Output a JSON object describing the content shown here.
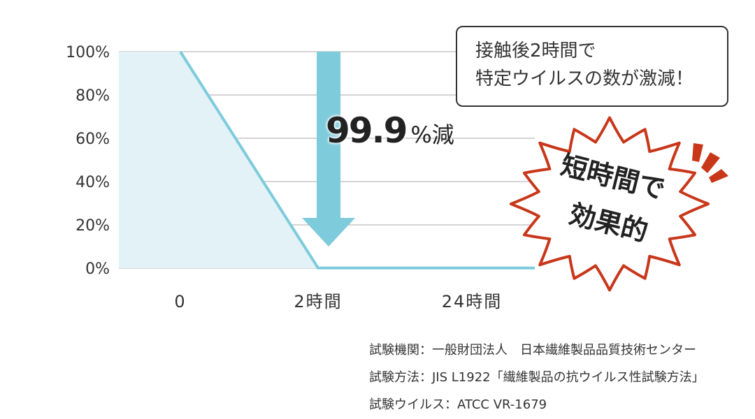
{
  "chart_data": {
    "type": "area",
    "categories": [
      "0",
      "2時間",
      "24時間"
    ],
    "series": [
      {
        "values": [
          100,
          0.1,
          0.1
        ]
      }
    ],
    "y_ticks": [
      "100%",
      "80%",
      "60%",
      "40%",
      "20%",
      "0%"
    ],
    "ylim": [
      0,
      100
    ],
    "grid": true,
    "annotation": {
      "value": "99.9",
      "unit": "%減"
    }
  },
  "callout": {
    "lines": [
      "接触後2時間で",
      "特定ウイルスの数が激減！"
    ]
  },
  "burst": {
    "lines": [
      "短時間で",
      "効果的"
    ]
  },
  "sources": [
    "試験機関：一般財団法人　日本繊維製品品質技術センター",
    "試験方法：JIS L1922「繊維製品の抗ウイルス性試験方法」",
    "試験ウイルス：ATCC VR-1679"
  ],
  "colors": {
    "line": "#7ecbdc",
    "fill": "#e2f2f6",
    "arrow": "#7ecbdc",
    "burst_stroke": "#c8371a",
    "grid": "#a8a8a8"
  }
}
